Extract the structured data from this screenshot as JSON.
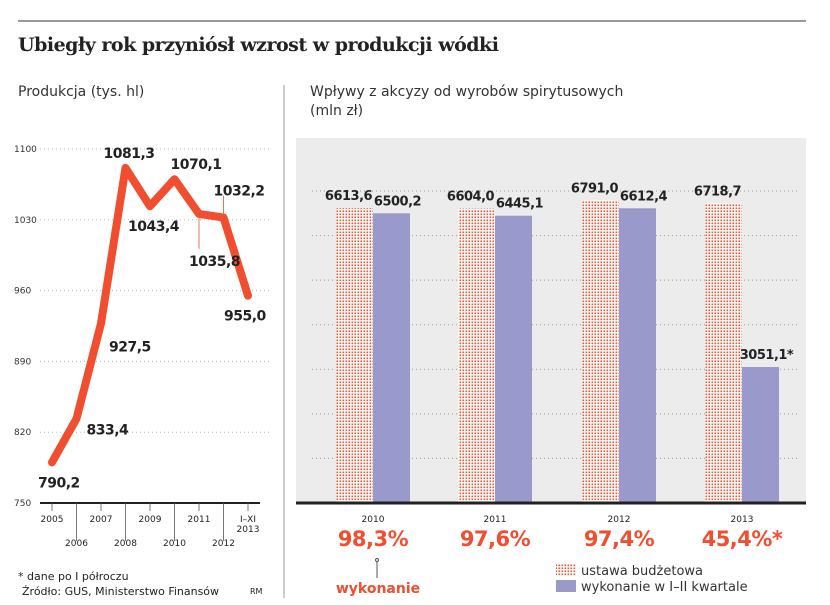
{
  "title": "Ubiegły rok przyniósł wzrost w produkcji wódki",
  "chart_data": [
    {
      "type": "line",
      "title": "Produkcja (tys. hl)",
      "categories": [
        "2005",
        "2006",
        "2007",
        "2008",
        "2009",
        "2010",
        "2011",
        "2012",
        "I–XI 2013"
      ],
      "values": [
        790.2,
        833.4,
        927.5,
        1081.3,
        1043.4,
        1070.1,
        1035.8,
        1032.2,
        955.0
      ],
      "labels": [
        "790,2",
        "833,4",
        "927,5",
        "1081,3",
        "1043,4",
        "1070,1",
        "1035,8",
        "1032,2",
        "955,0"
      ],
      "yticks": [
        "750",
        "820",
        "890",
        "960",
        "1030",
        "1100"
      ],
      "ylim": [
        750,
        1100
      ],
      "grid": true,
      "color": "#f04e2e"
    },
    {
      "type": "bar",
      "title": "Wpływy z akcyzy od wyrobów spirytusowych",
      "subtitle": "(mln zł)",
      "categories": [
        "2010",
        "2011",
        "2012",
        "2013"
      ],
      "series": [
        {
          "name": "ustawa budżetowa",
          "values": [
            6613.6,
            6604.0,
            6791.0,
            6718.7
          ],
          "labels": [
            "6613,6",
            "6604,0",
            "6791,0",
            "6718,7"
          ],
          "color": "#f04e2e"
        },
        {
          "name": "wykonanie w I–II kwartale",
          "values": [
            6500.2,
            6445.1,
            6612.4,
            3051.1
          ],
          "labels": [
            "6500,2",
            "6445,1",
            "6612,4",
            "3051,1*"
          ],
          "color": "#9999cc"
        }
      ],
      "percent_labels": [
        "98,3%",
        "97,6%",
        "97,4%",
        "45,4%*"
      ],
      "percent_caption": "wykonanie",
      "ylim": [
        0,
        7000
      ],
      "grid": true,
      "legend": "bottom-right"
    }
  ],
  "footnote": "* dane po I półroczu",
  "source": "Źródło: GUS, Ministerstwo Finansów",
  "author": "RM"
}
